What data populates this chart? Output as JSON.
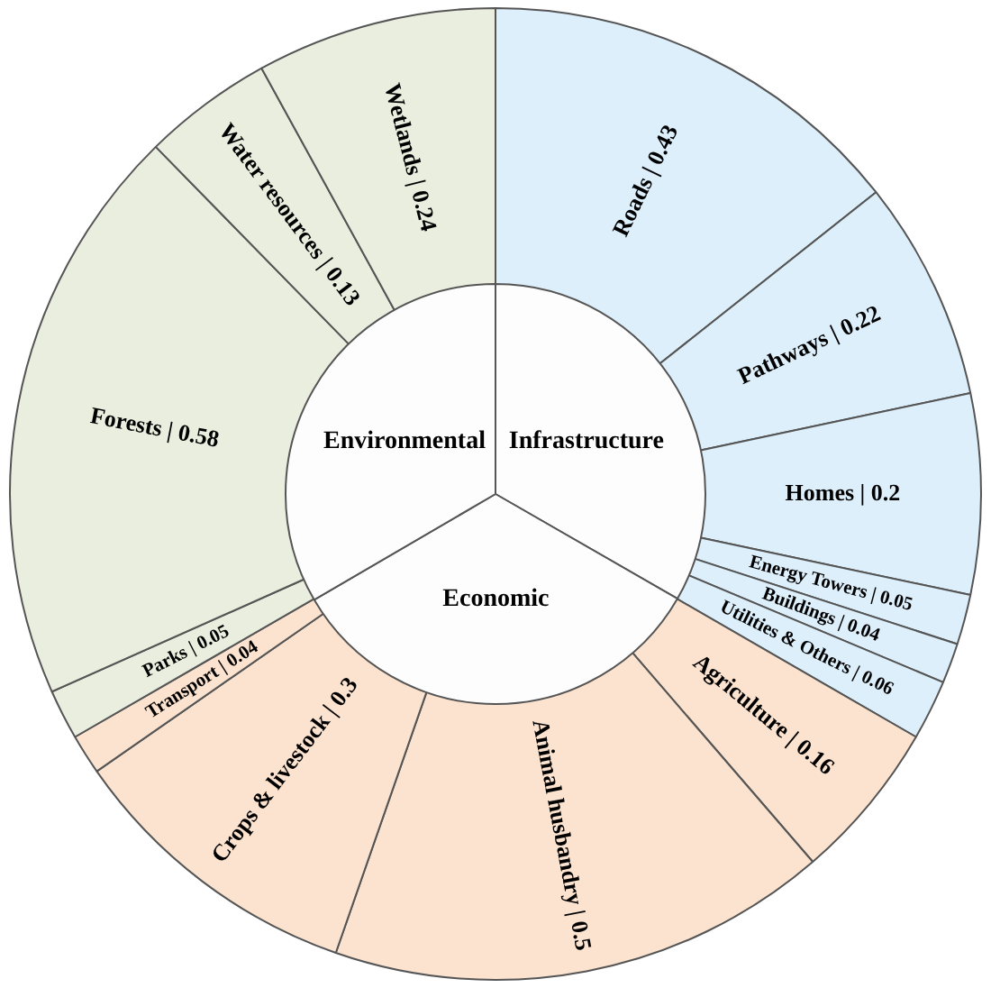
{
  "chart_data": [
    {
      "type": "donut",
      "categories": [
        "Roads",
        "Pathways",
        "Homes",
        "Energy Towers",
        "Buildings",
        "Utilities & Others",
        "Agriculture",
        "Animal husbandry",
        "Crops & livestock",
        "Transport",
        "Parks",
        "Forests",
        "Water resources",
        "Wetlands"
      ],
      "values": [
        0.43,
        0.22,
        0.2,
        0.05,
        0.04,
        0.06,
        0.16,
        0.5,
        0.3,
        0.04,
        0.05,
        0.58,
        0.13,
        0.24
      ],
      "colors": [
        "#ddeffb",
        "#ddeffb",
        "#ddeffb",
        "#ddeffb",
        "#ddeffb",
        "#ddeffb",
        "#fbe3cf",
        "#fbe3cf",
        "#fbe3cf",
        "#fbe3cf",
        "#eaeedf",
        "#eaeedf",
        "#eaeedf",
        "#eaeedf"
      ],
      "value_labels": [
        "| 0.43",
        "| 0.22",
        "| 0.2",
        "| 0.05",
        "| 0.04",
        "| 0.06",
        "| 0.16",
        "| 0.5",
        "| 0.3",
        "| 0.04",
        "| 0.05",
        "| 0.58",
        "| 0.13",
        "| 0.24"
      ],
      "legend": false
    },
    {
      "type": "pie",
      "categories": [
        "Infrastructure",
        "Economic",
        "Environmental"
      ],
      "values": [
        33.3,
        33.3,
        33.4
      ],
      "colors": [
        "#fdfdfd",
        "#fdfdfd",
        "#fdfdfd"
      ],
      "legend": false
    }
  ]
}
